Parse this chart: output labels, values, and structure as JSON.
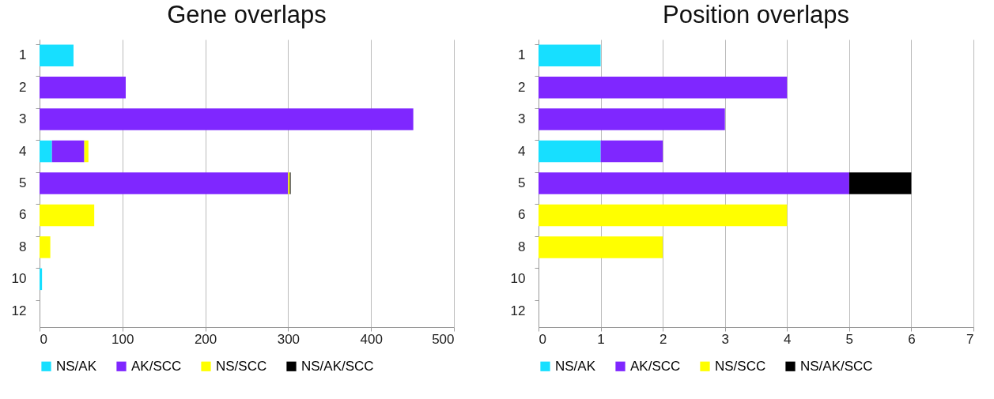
{
  "chart_data": [
    {
      "type": "bar",
      "title": "Gene overlaps",
      "orientation": "horizontal",
      "stacked": true,
      "categories": [
        "1",
        "2",
        "3",
        "4",
        "5",
        "6",
        "8",
        "10",
        "12"
      ],
      "xlim": [
        0,
        500
      ],
      "xticks": [
        0,
        100,
        200,
        300,
        400,
        500
      ],
      "grid": "x",
      "legend": "bottom",
      "series": [
        {
          "name": "NS/AK",
          "color": "#17dfff",
          "values": [
            41,
            null,
            null,
            15,
            null,
            null,
            null,
            3,
            null
          ]
        },
        {
          "name": "AK/SCC",
          "color": "#7f27ff",
          "values": [
            null,
            104,
            451,
            39,
            300,
            null,
            null,
            null,
            null
          ]
        },
        {
          "name": "NS/SCC",
          "color": "#ffff00",
          "values": [
            null,
            null,
            null,
            5,
            2,
            66,
            13,
            null,
            null
          ]
        },
        {
          "name": "NS/AK/SCC",
          "color": "#000000",
          "values": [
            null,
            null,
            null,
            null,
            1,
            null,
            null,
            null,
            null
          ]
        }
      ]
    },
    {
      "type": "bar",
      "title": "Position overlaps",
      "orientation": "horizontal",
      "stacked": true,
      "categories": [
        "1",
        "2",
        "3",
        "4",
        "5",
        "6",
        "8",
        "10",
        "12"
      ],
      "xlim": [
        0,
        7
      ],
      "xticks": [
        0,
        1,
        2,
        3,
        4,
        5,
        6,
        7
      ],
      "grid": "x",
      "legend": "bottom",
      "series": [
        {
          "name": "NS/AK",
          "color": "#17dfff",
          "values": [
            1,
            null,
            null,
            1,
            null,
            null,
            null,
            null,
            null
          ]
        },
        {
          "name": "AK/SCC",
          "color": "#7f27ff",
          "values": [
            null,
            4,
            3,
            1,
            5,
            null,
            null,
            null,
            null
          ]
        },
        {
          "name": "NS/SCC",
          "color": "#ffff00",
          "values": [
            null,
            null,
            null,
            null,
            null,
            4,
            2,
            null,
            null
          ]
        },
        {
          "name": "NS/AK/SCC",
          "color": "#000000",
          "values": [
            null,
            null,
            null,
            null,
            1,
            null,
            null,
            null,
            null
          ]
        }
      ]
    }
  ]
}
